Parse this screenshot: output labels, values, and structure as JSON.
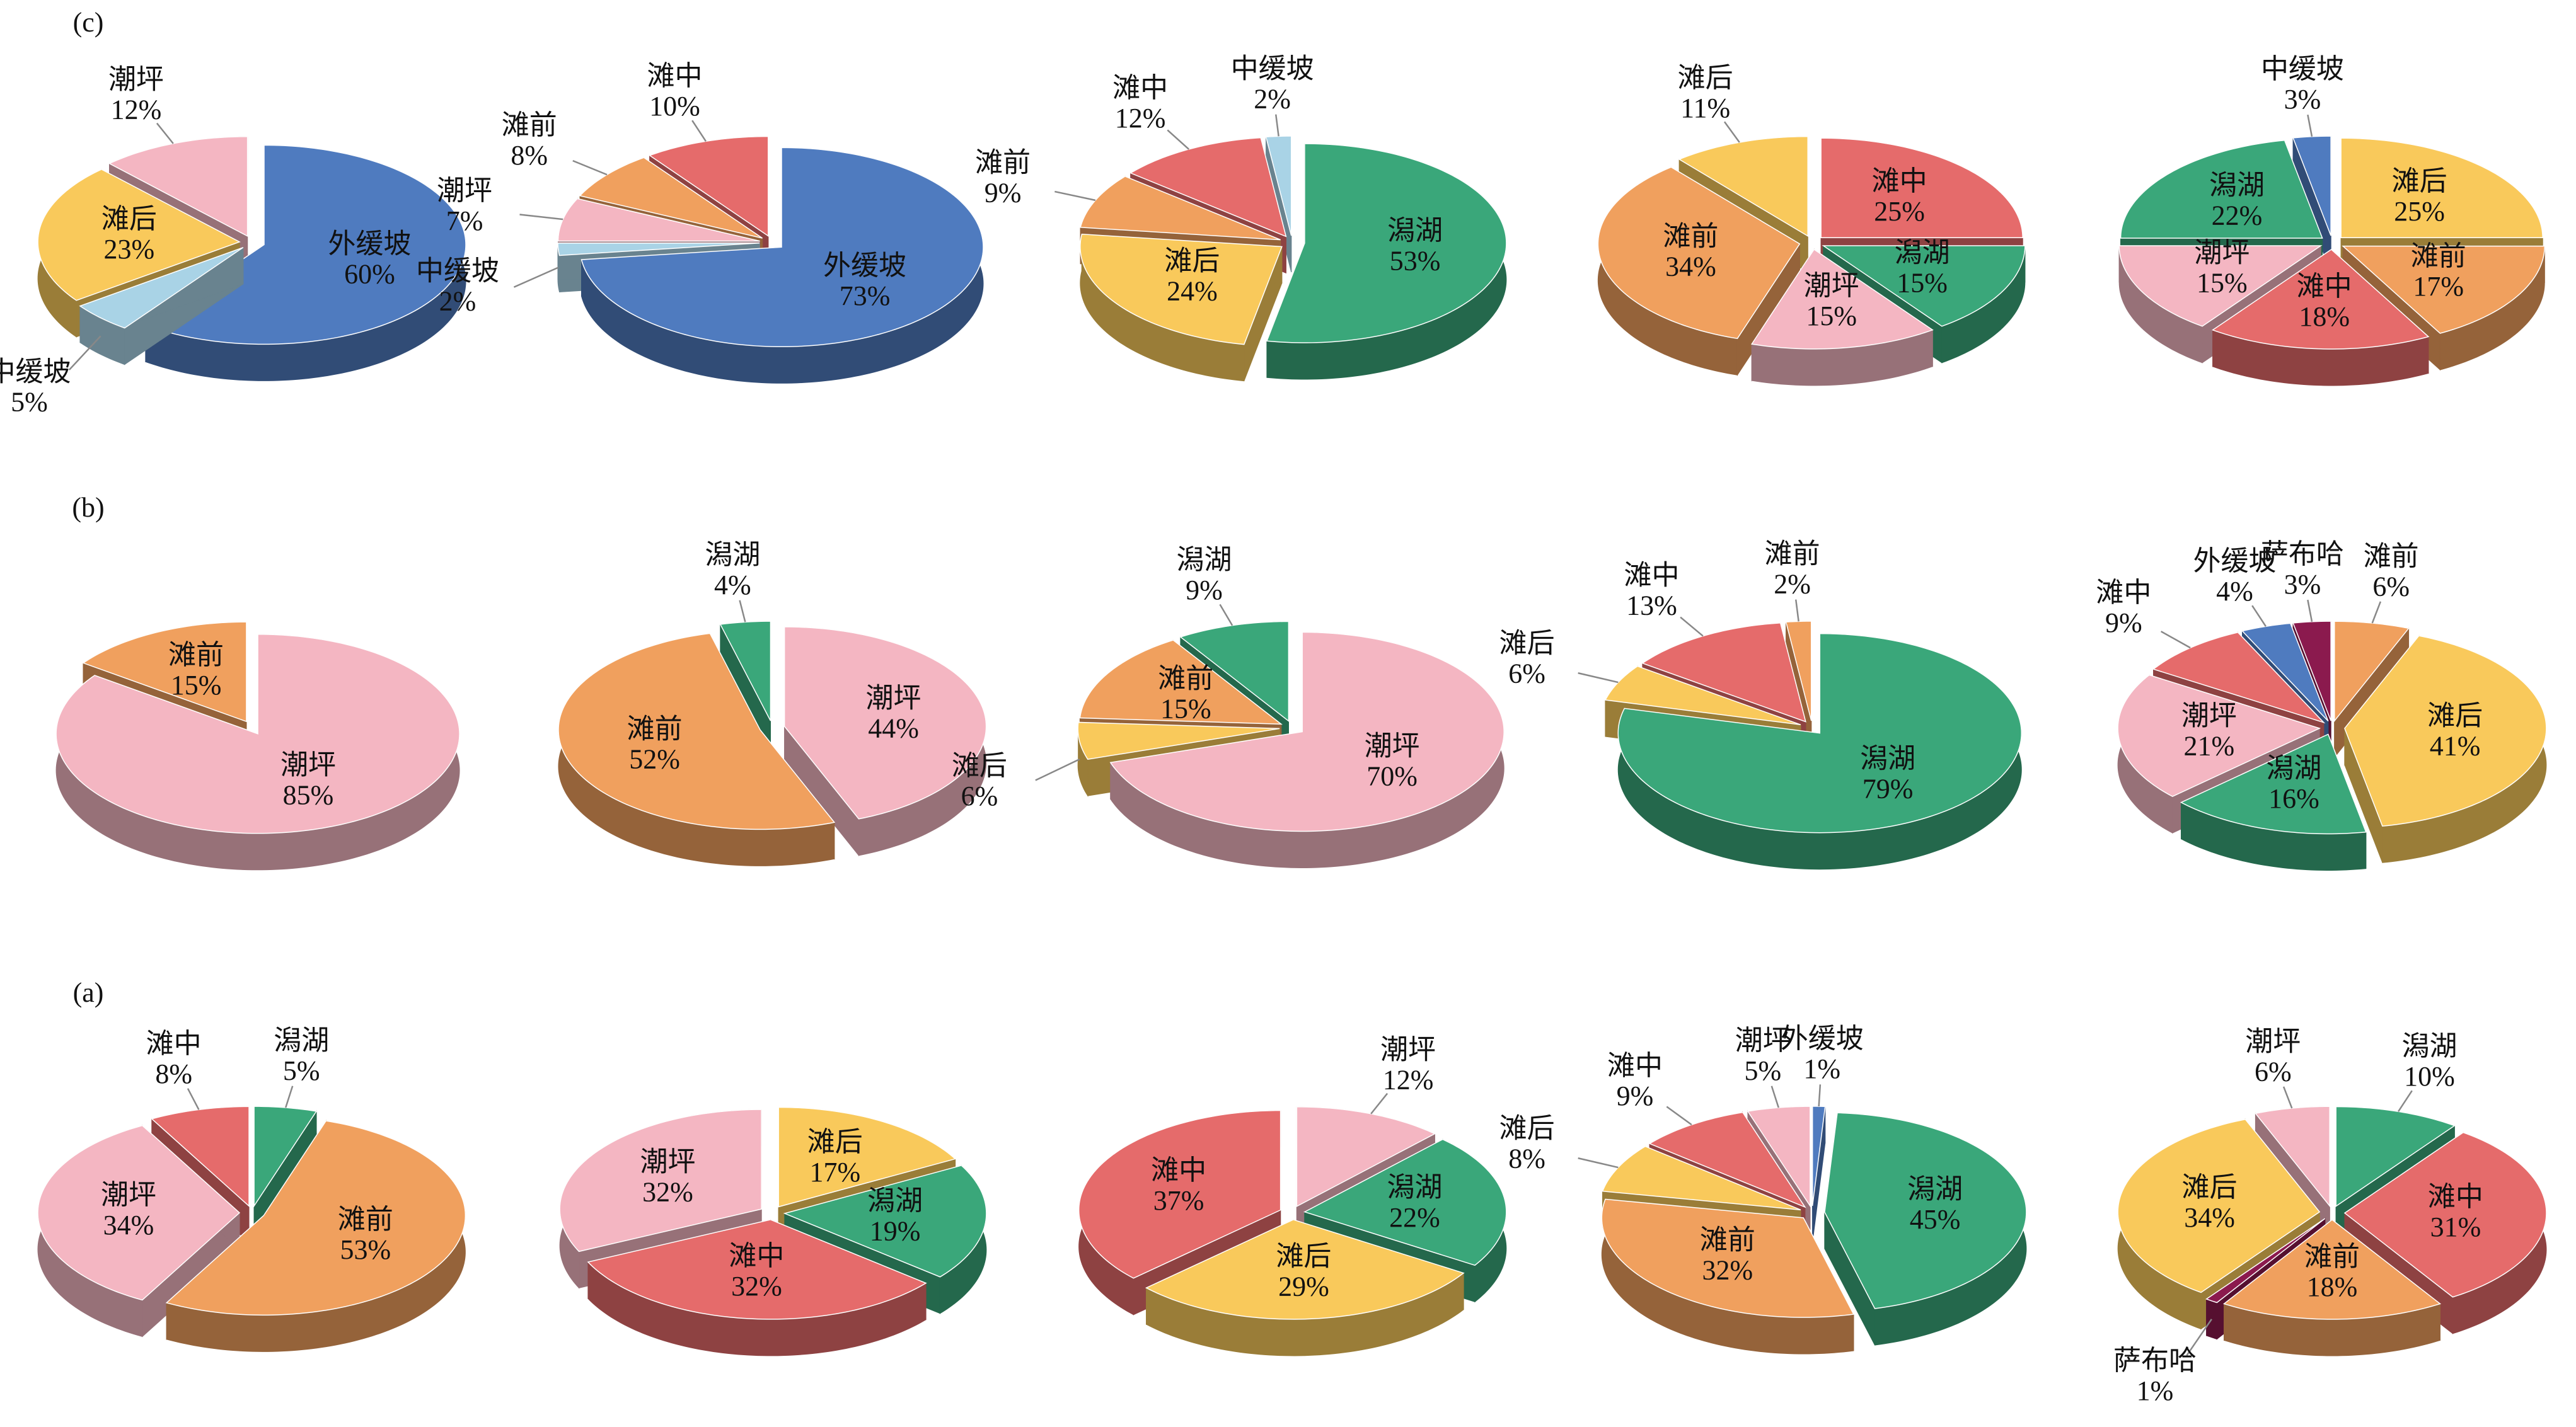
{
  "chart_data": [
    {
      "type": "pie",
      "panel": "(c)",
      "categories": [
        "外缓坡",
        "中缓坡",
        "滩后",
        "潮坪"
      ],
      "values": [
        60,
        5,
        23,
        12
      ],
      "value_labels": [
        "60%",
        "5%",
        "23%",
        "12%"
      ],
      "colors": [
        "#4f7bbf",
        "#a9d3e6",
        "#f9c95b",
        "#f4b6c2"
      ]
    },
    {
      "type": "pie",
      "categories": [
        "外缓坡",
        "中缓坡",
        "潮坪",
        "滩前",
        "滩中"
      ],
      "values": [
        73,
        2,
        7,
        8,
        10
      ],
      "value_labels": [
        "73%",
        "2%",
        "7%",
        "8%",
        "10%"
      ],
      "colors": [
        "#4f7bbf",
        "#a9d3e6",
        "#f4b6c2",
        "#f0a05e",
        "#e56b6b"
      ]
    },
    {
      "type": "pie",
      "categories": [
        "潟湖",
        "滩后",
        "滩前",
        "滩中",
        "中缓坡"
      ],
      "values": [
        53,
        24,
        9,
        12,
        2
      ],
      "value_labels": [
        "53%",
        "24%",
        "9%",
        "12%",
        "2%"
      ],
      "colors": [
        "#3aa77a",
        "#f9c95b",
        "#f0a05e",
        "#e56b6b",
        "#a9d3e6"
      ]
    },
    {
      "type": "pie",
      "categories": [
        "滩中",
        "潟湖",
        "潮坪",
        "滩前",
        "滩后"
      ],
      "values": [
        25,
        15,
        15,
        34,
        11
      ],
      "value_labels": [
        "25%",
        "15%",
        "15%",
        "34%",
        "11%"
      ],
      "colors": [
        "#e56b6b",
        "#3aa77a",
        "#f4b6c2",
        "#f0a05e",
        "#f9c95b"
      ]
    },
    {
      "type": "pie",
      "categories": [
        "滩后",
        "滩前",
        "滩中",
        "潮坪",
        "潟湖",
        "中缓坡"
      ],
      "values": [
        25,
        17,
        18,
        15,
        22,
        3
      ],
      "value_labels": [
        "25%",
        "17%",
        "18%",
        "15%",
        "22%",
        "3%"
      ],
      "colors": [
        "#f9c95b",
        "#f0a05e",
        "#e56b6b",
        "#f4b6c2",
        "#3aa77a",
        "#4f7bbf"
      ]
    },
    {
      "type": "pie",
      "panel": "(b)",
      "categories": [
        "潮坪",
        "滩前"
      ],
      "values": [
        85,
        15
      ],
      "value_labels": [
        "85%",
        "15%"
      ],
      "colors": [
        "#f4b6c2",
        "#f0a05e"
      ]
    },
    {
      "type": "pie",
      "categories": [
        "潮坪",
        "滩前",
        "潟湖"
      ],
      "values": [
        44,
        52,
        4
      ],
      "value_labels": [
        "44%",
        "52%",
        "4%"
      ],
      "colors": [
        "#f4b6c2",
        "#f0a05e",
        "#3aa77a"
      ]
    },
    {
      "type": "pie",
      "categories": [
        "潮坪",
        "滩后",
        "滩前",
        "潟湖"
      ],
      "values": [
        70,
        6,
        15,
        9
      ],
      "value_labels": [
        "70%",
        "6%",
        "15%",
        "9%"
      ],
      "colors": [
        "#f4b6c2",
        "#f9c95b",
        "#f0a05e",
        "#3aa77a"
      ]
    },
    {
      "type": "pie",
      "categories": [
        "潟湖",
        "滩后",
        "滩中",
        "滩前"
      ],
      "values": [
        79,
        6,
        13,
        2
      ],
      "value_labels": [
        "79%",
        "6%",
        "13%",
        "2%"
      ],
      "colors": [
        "#3aa77a",
        "#f9c95b",
        "#e56b6b",
        "#f0a05e"
      ]
    },
    {
      "type": "pie",
      "categories": [
        "滩前",
        "滩后",
        "潟湖",
        "潮坪",
        "滩中",
        "外缓坡",
        "萨布哈"
      ],
      "values": [
        6,
        41,
        16,
        21,
        9,
        4,
        3
      ],
      "value_labels": [
        "6%",
        "41%",
        "16%",
        "21%",
        "9%",
        "4%",
        "3%"
      ],
      "colors": [
        "#f0a05e",
        "#f9c95b",
        "#3aa77a",
        "#f4b6c2",
        "#e56b6b",
        "#4f7bbf",
        "#8b1a4e"
      ]
    },
    {
      "type": "pie",
      "panel": "(a)",
      "categories": [
        "潟湖",
        "滩前",
        "潮坪",
        "滩中"
      ],
      "values": [
        5,
        53,
        34,
        8
      ],
      "value_labels": [
        "5%",
        "53%",
        "34%",
        "8%"
      ],
      "colors": [
        "#3aa77a",
        "#f0a05e",
        "#f4b6c2",
        "#e56b6b"
      ]
    },
    {
      "type": "pie",
      "categories": [
        "滩后",
        "潟湖",
        "滩中",
        "潮坪"
      ],
      "values": [
        17,
        19,
        32,
        32
      ],
      "value_labels": [
        "17%",
        "19%",
        "32%",
        "32%"
      ],
      "colors": [
        "#f9c95b",
        "#3aa77a",
        "#e56b6b",
        "#f4b6c2"
      ]
    },
    {
      "type": "pie",
      "categories": [
        "潮坪",
        "潟湖",
        "滩后",
        "滩中"
      ],
      "values": [
        12,
        22,
        29,
        37
      ],
      "value_labels": [
        "12%",
        "22%",
        "29%",
        "37%"
      ],
      "colors": [
        "#f4b6c2",
        "#3aa77a",
        "#f9c95b",
        "#e56b6b"
      ]
    },
    {
      "type": "pie",
      "categories": [
        "外缓坡",
        "潟湖",
        "滩前",
        "滩后",
        "滩中",
        "潮坪"
      ],
      "values": [
        1,
        45,
        32,
        8,
        9,
        5
      ],
      "value_labels": [
        "1%",
        "45%",
        "32%",
        "8%",
        "9%",
        "5%"
      ],
      "colors": [
        "#4f7bbf",
        "#3aa77a",
        "#f0a05e",
        "#f9c95b",
        "#e56b6b",
        "#f4b6c2"
      ]
    },
    {
      "type": "pie",
      "categories": [
        "潟湖",
        "滩中",
        "滩前",
        "萨布哈",
        "滩后",
        "潮坪"
      ],
      "values": [
        10,
        31,
        18,
        1,
        34,
        6
      ],
      "value_labels": [
        "10%",
        "31%",
        "18%",
        "1%",
        "34%",
        "6%"
      ],
      "colors": [
        "#3aa77a",
        "#e56b6b",
        "#f0a05e",
        "#8b1a4e",
        "#f9c95b",
        "#f4b6c2"
      ]
    }
  ]
}
